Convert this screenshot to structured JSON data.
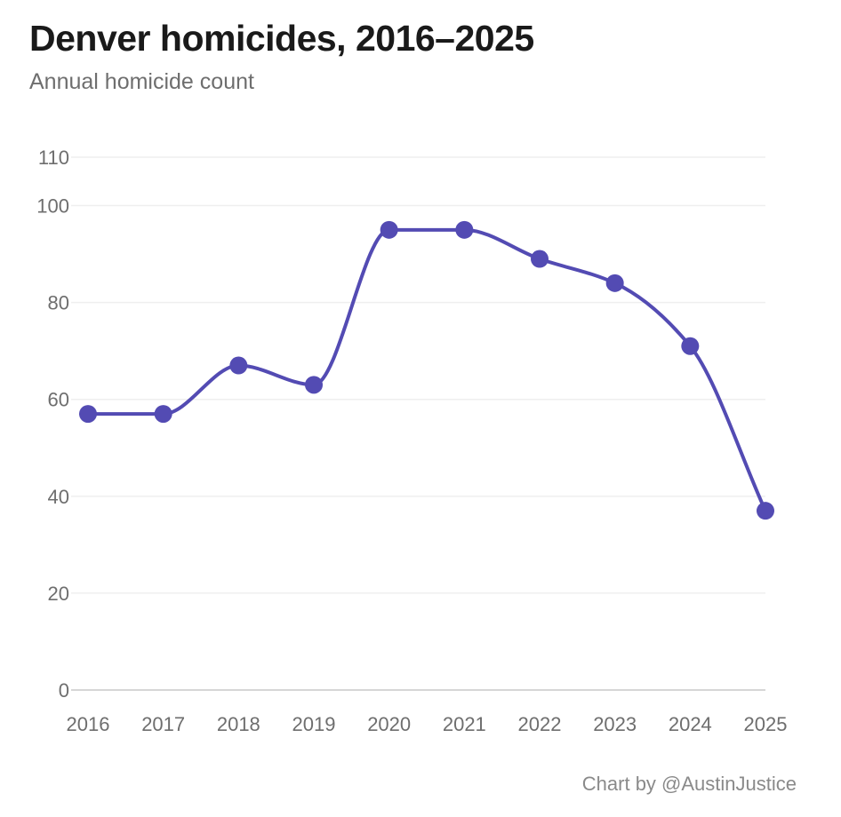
{
  "title": "Denver homicides, 2016–2025",
  "subtitle": "Annual homicide count",
  "credit": "Chart by @AustinJustice",
  "chart_data": {
    "type": "line",
    "title": "Denver homicides, 2016–2025",
    "subtitle": "Annual homicide count",
    "x": [
      "2016",
      "2017",
      "2018",
      "2019",
      "2020",
      "2021",
      "2022",
      "2023",
      "2024",
      "2025"
    ],
    "series": [
      {
        "values": [
          57,
          57,
          67,
          63,
          95,
          95,
          89,
          84,
          71,
          37
        ],
        "color": "#534bb3"
      }
    ],
    "y_ticks": [
      "0",
      "20",
      "40",
      "60",
      "80",
      "100",
      "110"
    ],
    "ylim": [
      0,
      110
    ],
    "grid": true,
    "smooth": true,
    "markers": true
  }
}
